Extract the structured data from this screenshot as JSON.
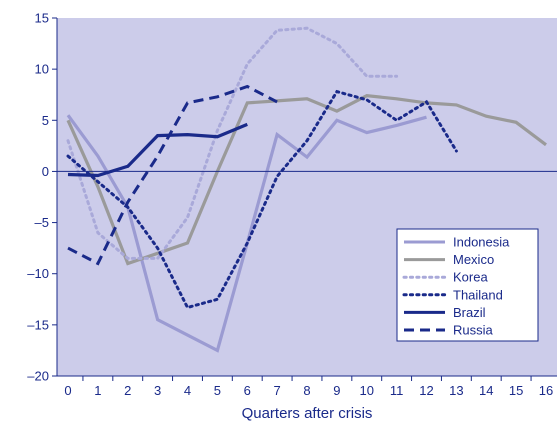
{
  "chart_data": {
    "type": "line",
    "title": "",
    "xlabel": "Quarters after crisis",
    "ylabel": "",
    "xlim": [
      0,
      16
    ],
    "ylim": [
      -20,
      15
    ],
    "x_ticks": [
      0,
      1,
      2,
      3,
      4,
      5,
      6,
      7,
      8,
      9,
      10,
      11,
      12,
      13,
      14,
      15,
      16
    ],
    "y_ticks": [
      -20,
      -15,
      -10,
      -5,
      0,
      5,
      10,
      15
    ],
    "grid": false,
    "zero_line": true,
    "legend_position": "right",
    "colors": {
      "plot_background": "#ccccea",
      "axis": "#1a2a8a",
      "indonesia": "#9b9bd2",
      "mexico": "#9a9a9a",
      "korea": "#a9a9d9",
      "thailand": "#1a2a8a",
      "brazil": "#1a2a8a",
      "russia": "#1a2a8a"
    },
    "series": [
      {
        "name": "Indonesia",
        "color": "#9b9bd2",
        "style": "solid",
        "points": [
          [
            0,
            5.5
          ],
          [
            1,
            1.5
          ],
          [
            2,
            -3.5
          ],
          [
            3,
            -14.5
          ],
          [
            4,
            -16
          ],
          [
            5,
            -17.5
          ],
          [
            6,
            -7
          ],
          [
            7,
            3.6
          ],
          [
            8,
            1.4
          ],
          [
            9,
            5
          ],
          [
            10,
            3.8
          ],
          [
            11,
            4.5
          ],
          [
            12,
            5.3
          ]
        ]
      },
      {
        "name": "Mexico",
        "color": "#9a9a9a",
        "style": "solid",
        "points": [
          [
            0,
            5
          ],
          [
            1,
            -1.5
          ],
          [
            2,
            -9
          ],
          [
            3,
            -8
          ],
          [
            4,
            -7
          ],
          [
            5,
            0
          ],
          [
            6,
            6.7
          ],
          [
            7,
            6.9
          ],
          [
            8,
            7.1
          ],
          [
            9,
            5.9
          ],
          [
            10,
            7.4
          ],
          [
            11,
            7.1
          ],
          [
            12,
            6.7
          ],
          [
            13,
            6.5
          ],
          [
            14,
            5.4
          ],
          [
            15,
            4.8
          ],
          [
            16,
            2.6
          ]
        ]
      },
      {
        "name": "Korea",
        "color": "#a9a9d9",
        "style": "dotted",
        "points": [
          [
            0,
            3
          ],
          [
            1,
            -6
          ],
          [
            2,
            -8.5
          ],
          [
            3,
            -8.5
          ],
          [
            4,
            -4.5
          ],
          [
            5,
            4
          ],
          [
            6,
            10.5
          ],
          [
            7,
            13.8
          ],
          [
            8,
            14
          ],
          [
            9,
            12.5
          ],
          [
            10,
            9.3
          ],
          [
            11,
            9.3
          ]
        ]
      },
      {
        "name": "Thailand",
        "color": "#1a2a8a",
        "style": "dotted",
        "points": [
          [
            0,
            1.5
          ],
          [
            1,
            -1
          ],
          [
            2,
            -3.5
          ],
          [
            3,
            -7.5
          ],
          [
            4,
            -13.3
          ],
          [
            5,
            -12.5
          ],
          [
            6,
            -7
          ],
          [
            7,
            -0.5
          ],
          [
            8,
            3
          ],
          [
            9,
            7.8
          ],
          [
            10,
            7
          ],
          [
            11,
            5
          ],
          [
            12,
            6.8
          ],
          [
            13,
            2
          ]
        ]
      },
      {
        "name": "Brazil",
        "color": "#1a2a8a",
        "style": "solid",
        "points": [
          [
            0,
            -0.3
          ],
          [
            1,
            -0.4
          ],
          [
            2,
            0.5
          ],
          [
            3,
            3.5
          ],
          [
            4,
            3.6
          ],
          [
            5,
            3.4
          ],
          [
            6,
            4.6
          ]
        ]
      },
      {
        "name": "Russia",
        "color": "#1a2a8a",
        "style": "dashed",
        "points": [
          [
            0,
            -7.5
          ],
          [
            1,
            -9
          ],
          [
            2,
            -3
          ],
          [
            3,
            1.5
          ],
          [
            4,
            6.7
          ],
          [
            5,
            7.3
          ],
          [
            6,
            8.3
          ],
          [
            7,
            6.8
          ]
        ]
      }
    ]
  }
}
